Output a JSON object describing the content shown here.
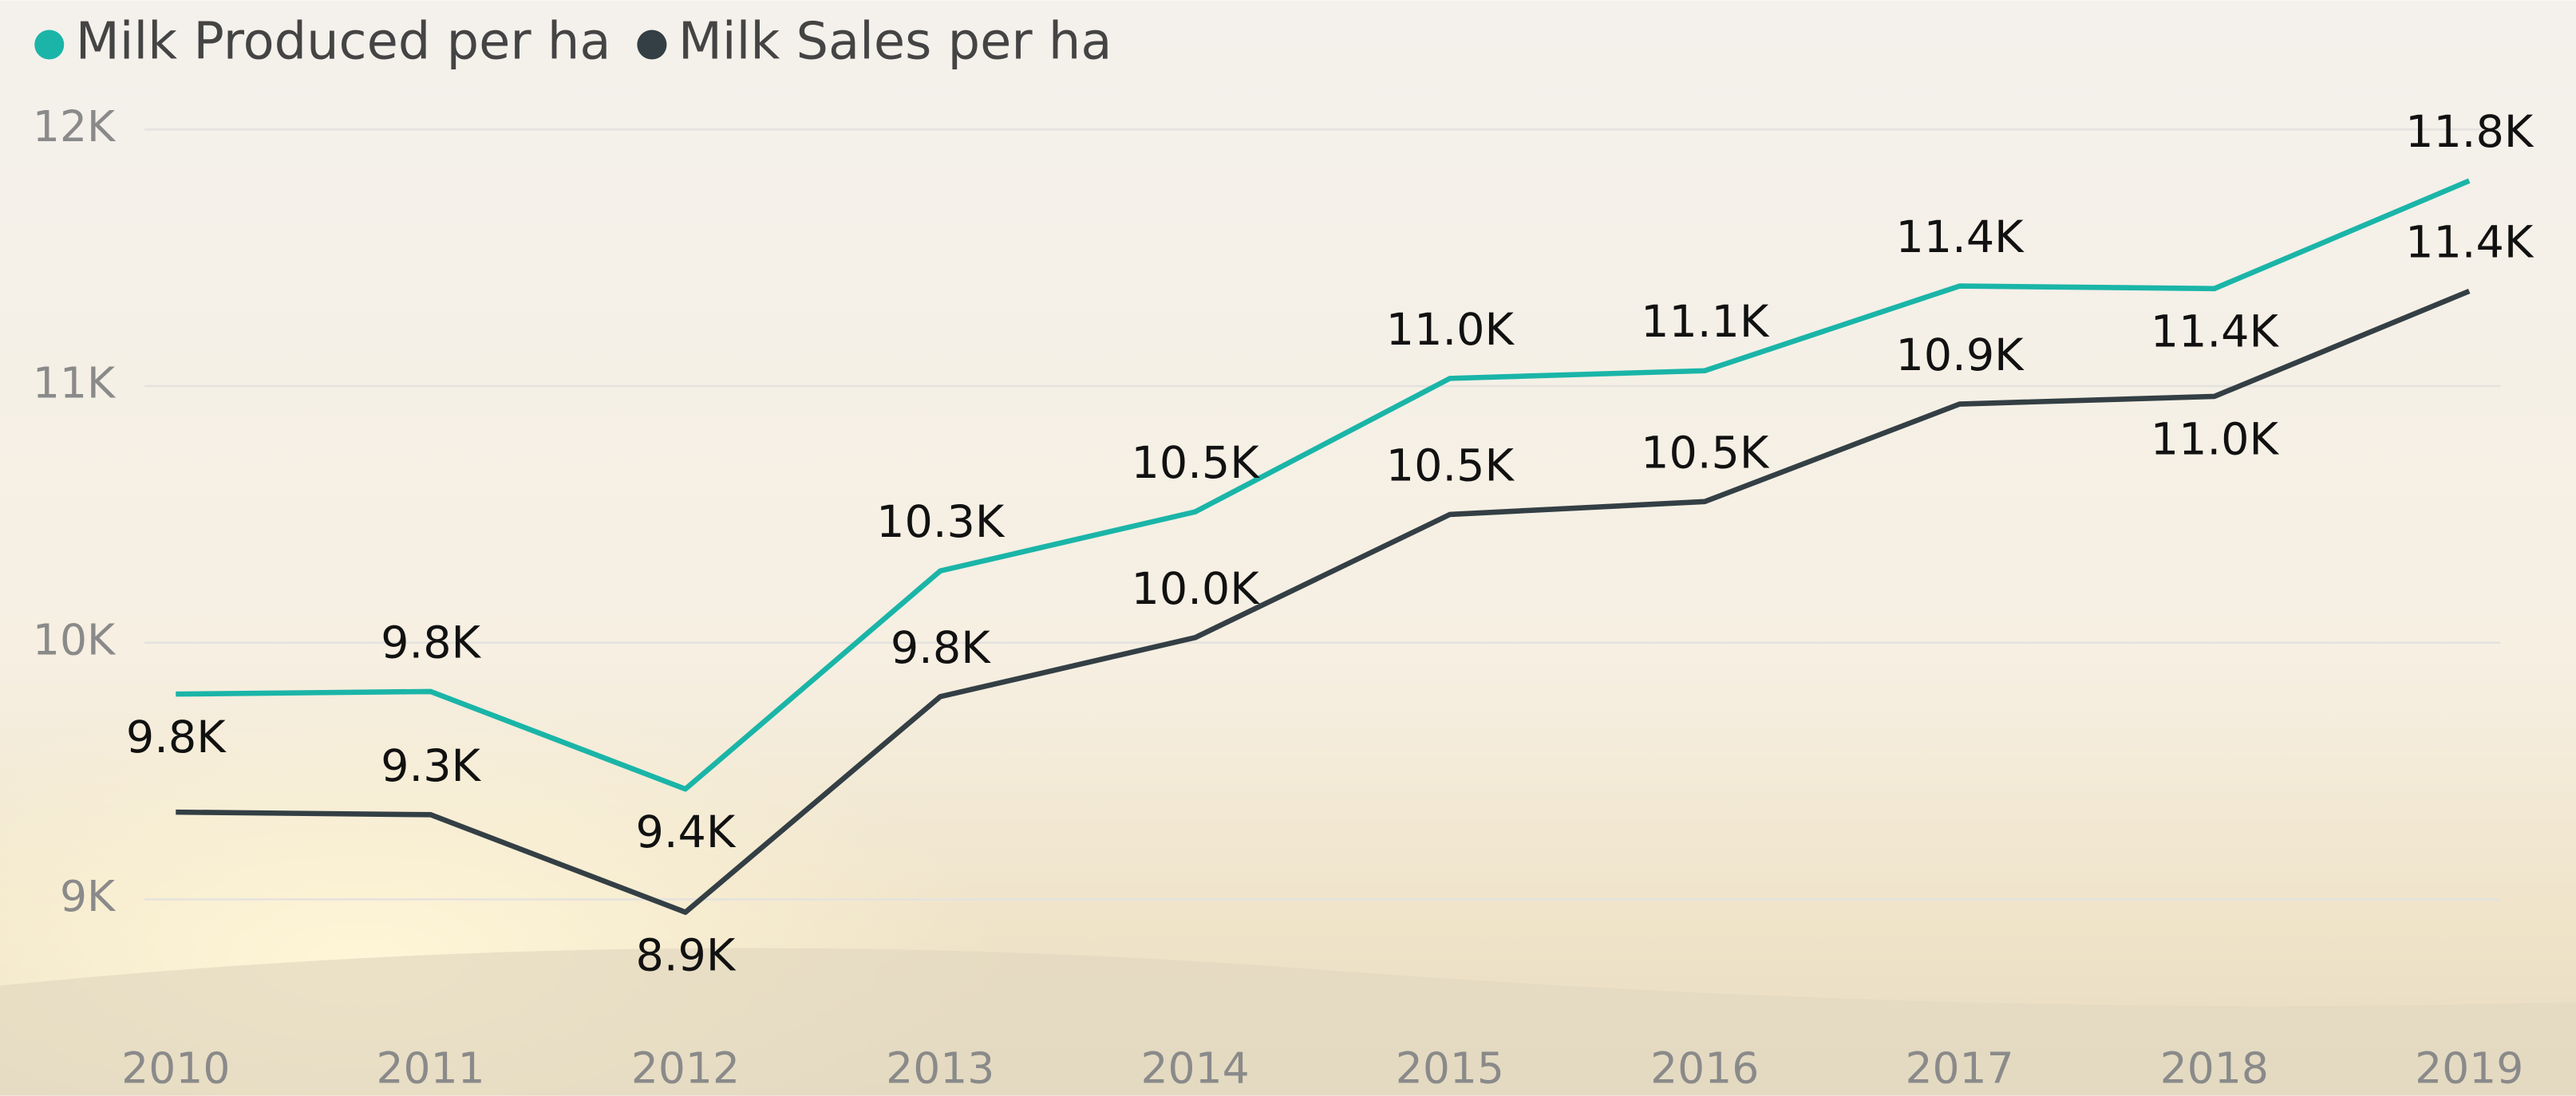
{
  "chart_data": {
    "type": "line",
    "categories": [
      "2010",
      "2011",
      "2012",
      "2013",
      "2014",
      "2015",
      "2016",
      "2017",
      "2018",
      "2019"
    ],
    "series": [
      {
        "name": "Milk Produced per ha",
        "color": "#1ab5a8",
        "values": [
          9800,
          9810,
          9430,
          10280,
          10510,
          11030,
          11060,
          11390,
          11380,
          11800
        ],
        "value_labels": [
          "9.8K",
          "9.8K",
          "9.4K",
          "10.3K",
          "10.5K",
          "11.0K",
          "11.1K",
          "11.4K",
          "11.4K",
          "11.8K"
        ]
      },
      {
        "name": "Milk Sales per ha",
        "color": "#333f44",
        "values": [
          9340,
          9330,
          8950,
          9790,
          10020,
          10500,
          10550,
          10930,
          10960,
          11370
        ],
        "value_labels": [
          null,
          "9.3K",
          "8.9K",
          "9.8K",
          "10.0K",
          "10.5K",
          "10.5K",
          "10.9K",
          "11.0K",
          "11.4K"
        ]
      }
    ],
    "ylim": [
      8600,
      12100
    ],
    "yticks": [
      {
        "value": 9000,
        "label": "9K"
      },
      {
        "value": 10000,
        "label": "10K"
      },
      {
        "value": 11000,
        "label": "11K"
      },
      {
        "value": 12000,
        "label": "12K"
      }
    ],
    "grid": true,
    "legend": "top-left"
  }
}
